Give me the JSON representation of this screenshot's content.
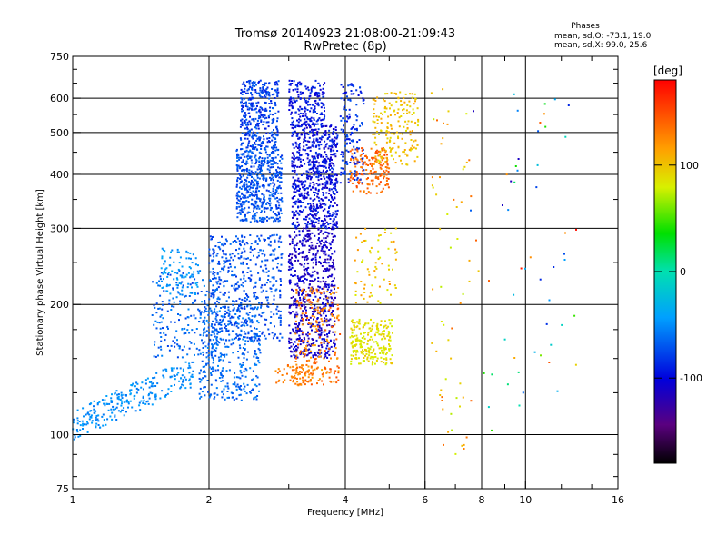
{
  "title": {
    "line1": "Tromsø 20140923 21:08:00-21:09:43",
    "line2": "RwPretec (8p)"
  },
  "stats": {
    "heading": "Phases",
    "line_o": "mean, sd,O: -73.1, 19.0",
    "line_x": "mean, sd,X:  99.0, 25.6"
  },
  "colorbar": {
    "unit": "[deg]",
    "range": [
      -180,
      180
    ],
    "ticks": [
      {
        "value": 100,
        "label": "100"
      },
      {
        "value": 0,
        "label": "0"
      },
      {
        "value": -100,
        "label": "-100"
      }
    ]
  },
  "chart_data": {
    "type": "scatter",
    "title": "Tromsø 20140923 21:08:00-21:09:43",
    "subtitle": "RwPretec (8p)",
    "xlabel": "Frequency [MHz]",
    "ylabel": "Stationary phase Virtual Height [km]",
    "xscale": "log",
    "yscale": "log",
    "xlim": [
      1,
      16
    ],
    "ylim": [
      75,
      750
    ],
    "grid": true,
    "color_encoding": "phase in degrees (rainbow colormap, -180 to 180)",
    "x_ticks": [
      {
        "value": 1,
        "label": "1"
      },
      {
        "value": 2,
        "label": "2"
      },
      {
        "value": 4,
        "label": "4"
      },
      {
        "value": 6,
        "label": "6"
      },
      {
        "value": 8,
        "label": "8"
      },
      {
        "value": 10,
        "label": "10"
      },
      {
        "value": 16,
        "label": "16"
      }
    ],
    "x_grid": [
      2,
      4,
      6,
      8,
      10
    ],
    "y_ticks": [
      {
        "value": 75,
        "label": "75"
      },
      {
        "value": 100,
        "label": "100"
      },
      {
        "value": 200,
        "label": "200"
      },
      {
        "value": 300,
        "label": "300"
      },
      {
        "value": 400,
        "label": "400"
      },
      {
        "value": 500,
        "label": "500"
      },
      {
        "value": 600,
        "label": "600"
      },
      {
        "value": 750,
        "label": "750"
      }
    ],
    "y_grid": [
      100,
      200,
      300,
      400,
      500,
      600
    ],
    "clusters": [
      {
        "name": "o-low-trace",
        "f": [
          1.0,
          1.85
        ],
        "h": [
          105,
          140
        ],
        "phase": [
          -60,
          -40
        ],
        "n": 260,
        "slope": 0.55
      },
      {
        "name": "o-low-upper",
        "f": [
          1.5,
          2.1
        ],
        "h": [
          150,
          240
        ],
        "phase": [
          -80,
          -50
        ],
        "n": 200
      },
      {
        "name": "o-low-left",
        "f": [
          1.55,
          1.9
        ],
        "h": [
          210,
          270
        ],
        "phase": [
          -55,
          -35
        ],
        "n": 90
      },
      {
        "name": "o-mid-trace",
        "f": [
          1.9,
          2.6
        ],
        "h": [
          120,
          200
        ],
        "phase": [
          -75,
          -50
        ],
        "n": 360
      },
      {
        "name": "o-mid-band",
        "f": [
          2.0,
          2.9
        ],
        "h": [
          165,
          290
        ],
        "phase": [
          -85,
          -60
        ],
        "n": 480
      },
      {
        "name": "o-f2-lower",
        "f": [
          2.3,
          2.9
        ],
        "h": [
          310,
          460
        ],
        "phase": [
          -85,
          -60
        ],
        "n": 520
      },
      {
        "name": "o-f2-upper",
        "f": [
          2.35,
          2.85
        ],
        "h": [
          460,
          660
        ],
        "phase": [
          -95,
          -65
        ],
        "n": 360
      },
      {
        "name": "o-f2-right",
        "f": [
          3.05,
          3.85
        ],
        "h": [
          300,
          520
        ],
        "phase": [
          -115,
          -80
        ],
        "n": 700
      },
      {
        "name": "o-f2-top",
        "f": [
          3.0,
          3.6
        ],
        "h": [
          520,
          660
        ],
        "phase": [
          -110,
          -80
        ],
        "n": 200
      },
      {
        "name": "o-e-region",
        "f": [
          3.0,
          3.8
        ],
        "h": [
          150,
          300
        ],
        "phase": [
          -125,
          -95
        ],
        "n": 650
      },
      {
        "name": "o-top-far",
        "f": [
          3.9,
          4.4
        ],
        "h": [
          380,
          650
        ],
        "phase": [
          -100,
          -70
        ],
        "n": 150
      },
      {
        "name": "x-orange-e",
        "f": [
          3.1,
          3.9
        ],
        "h": [
          130,
          220
        ],
        "phase": [
          110,
          150
        ],
        "n": 220
      },
      {
        "name": "x-orange-low",
        "f": [
          2.8,
          3.4
        ],
        "h": [
          130,
          145
        ],
        "phase": [
          120,
          140
        ],
        "n": 60
      },
      {
        "name": "x-yellow-e",
        "f": [
          4.1,
          5.1
        ],
        "h": [
          145,
          185
        ],
        "phase": [
          75,
          100
        ],
        "n": 230
      },
      {
        "name": "x-f2-orange",
        "f": [
          4.1,
          5.0
        ],
        "h": [
          360,
          460
        ],
        "phase": [
          125,
          155
        ],
        "n": 160
      },
      {
        "name": "x-f2-yellow",
        "f": [
          4.6,
          5.8
        ],
        "h": [
          420,
          620
        ],
        "phase": [
          85,
          115
        ],
        "n": 180
      },
      {
        "name": "x-scatter-mid",
        "f": [
          4.2,
          5.2
        ],
        "h": [
          200,
          300
        ],
        "phase": [
          80,
          120
        ],
        "n": 70
      },
      {
        "name": "x-sparse-right",
        "f": [
          6.2,
          7.6
        ],
        "h": [
          90,
          650
        ],
        "phase": [
          70,
          140
        ],
        "n": 60
      },
      {
        "name": "sparse-far",
        "f": [
          7.5,
          13
        ],
        "h": [
          100,
          640
        ],
        "phase": [
          -120,
          180
        ],
        "n": 55
      }
    ]
  }
}
